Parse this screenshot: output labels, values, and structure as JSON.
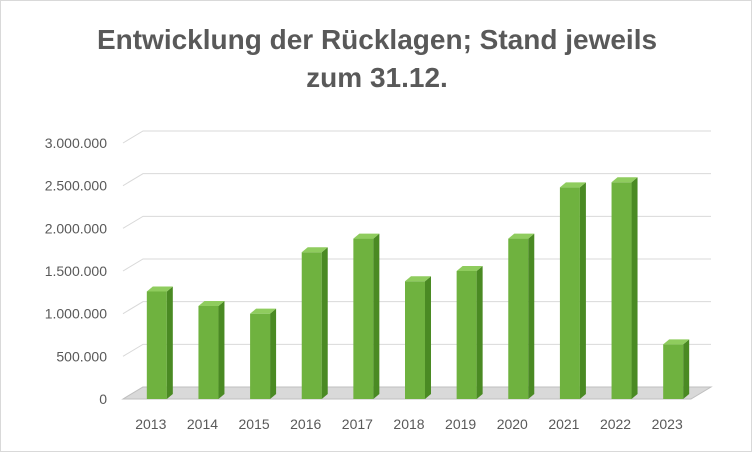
{
  "chart_data": {
    "type": "bar",
    "title": "Entwicklung der Rücklagen; Stand jeweils zum 31.12.",
    "title_lines": [
      "Entwicklung der Rücklagen; Stand jeweils",
      "zum 31.12."
    ],
    "categories": [
      "2013",
      "2014",
      "2015",
      "2016",
      "2017",
      "2018",
      "2019",
      "2020",
      "2021",
      "2022",
      "2023"
    ],
    "values": [
      1260000,
      1090000,
      1000000,
      1720000,
      1880000,
      1380000,
      1500000,
      1880000,
      2480000,
      2540000,
      640000
    ],
    "ylim": [
      0,
      3000000
    ],
    "y_ticks": [
      0,
      500000,
      1000000,
      1500000,
      2000000,
      2500000,
      3000000
    ],
    "y_tick_labels": [
      "0",
      "500.000",
      "1.000.000",
      "1.500.000",
      "2.000.000",
      "2.500.000",
      "3.000.000"
    ],
    "grid": true,
    "bar_color": "#6fb23f",
    "bar_color_dark": "#4a8a23",
    "bar_color_top": "#8fcc5e"
  }
}
